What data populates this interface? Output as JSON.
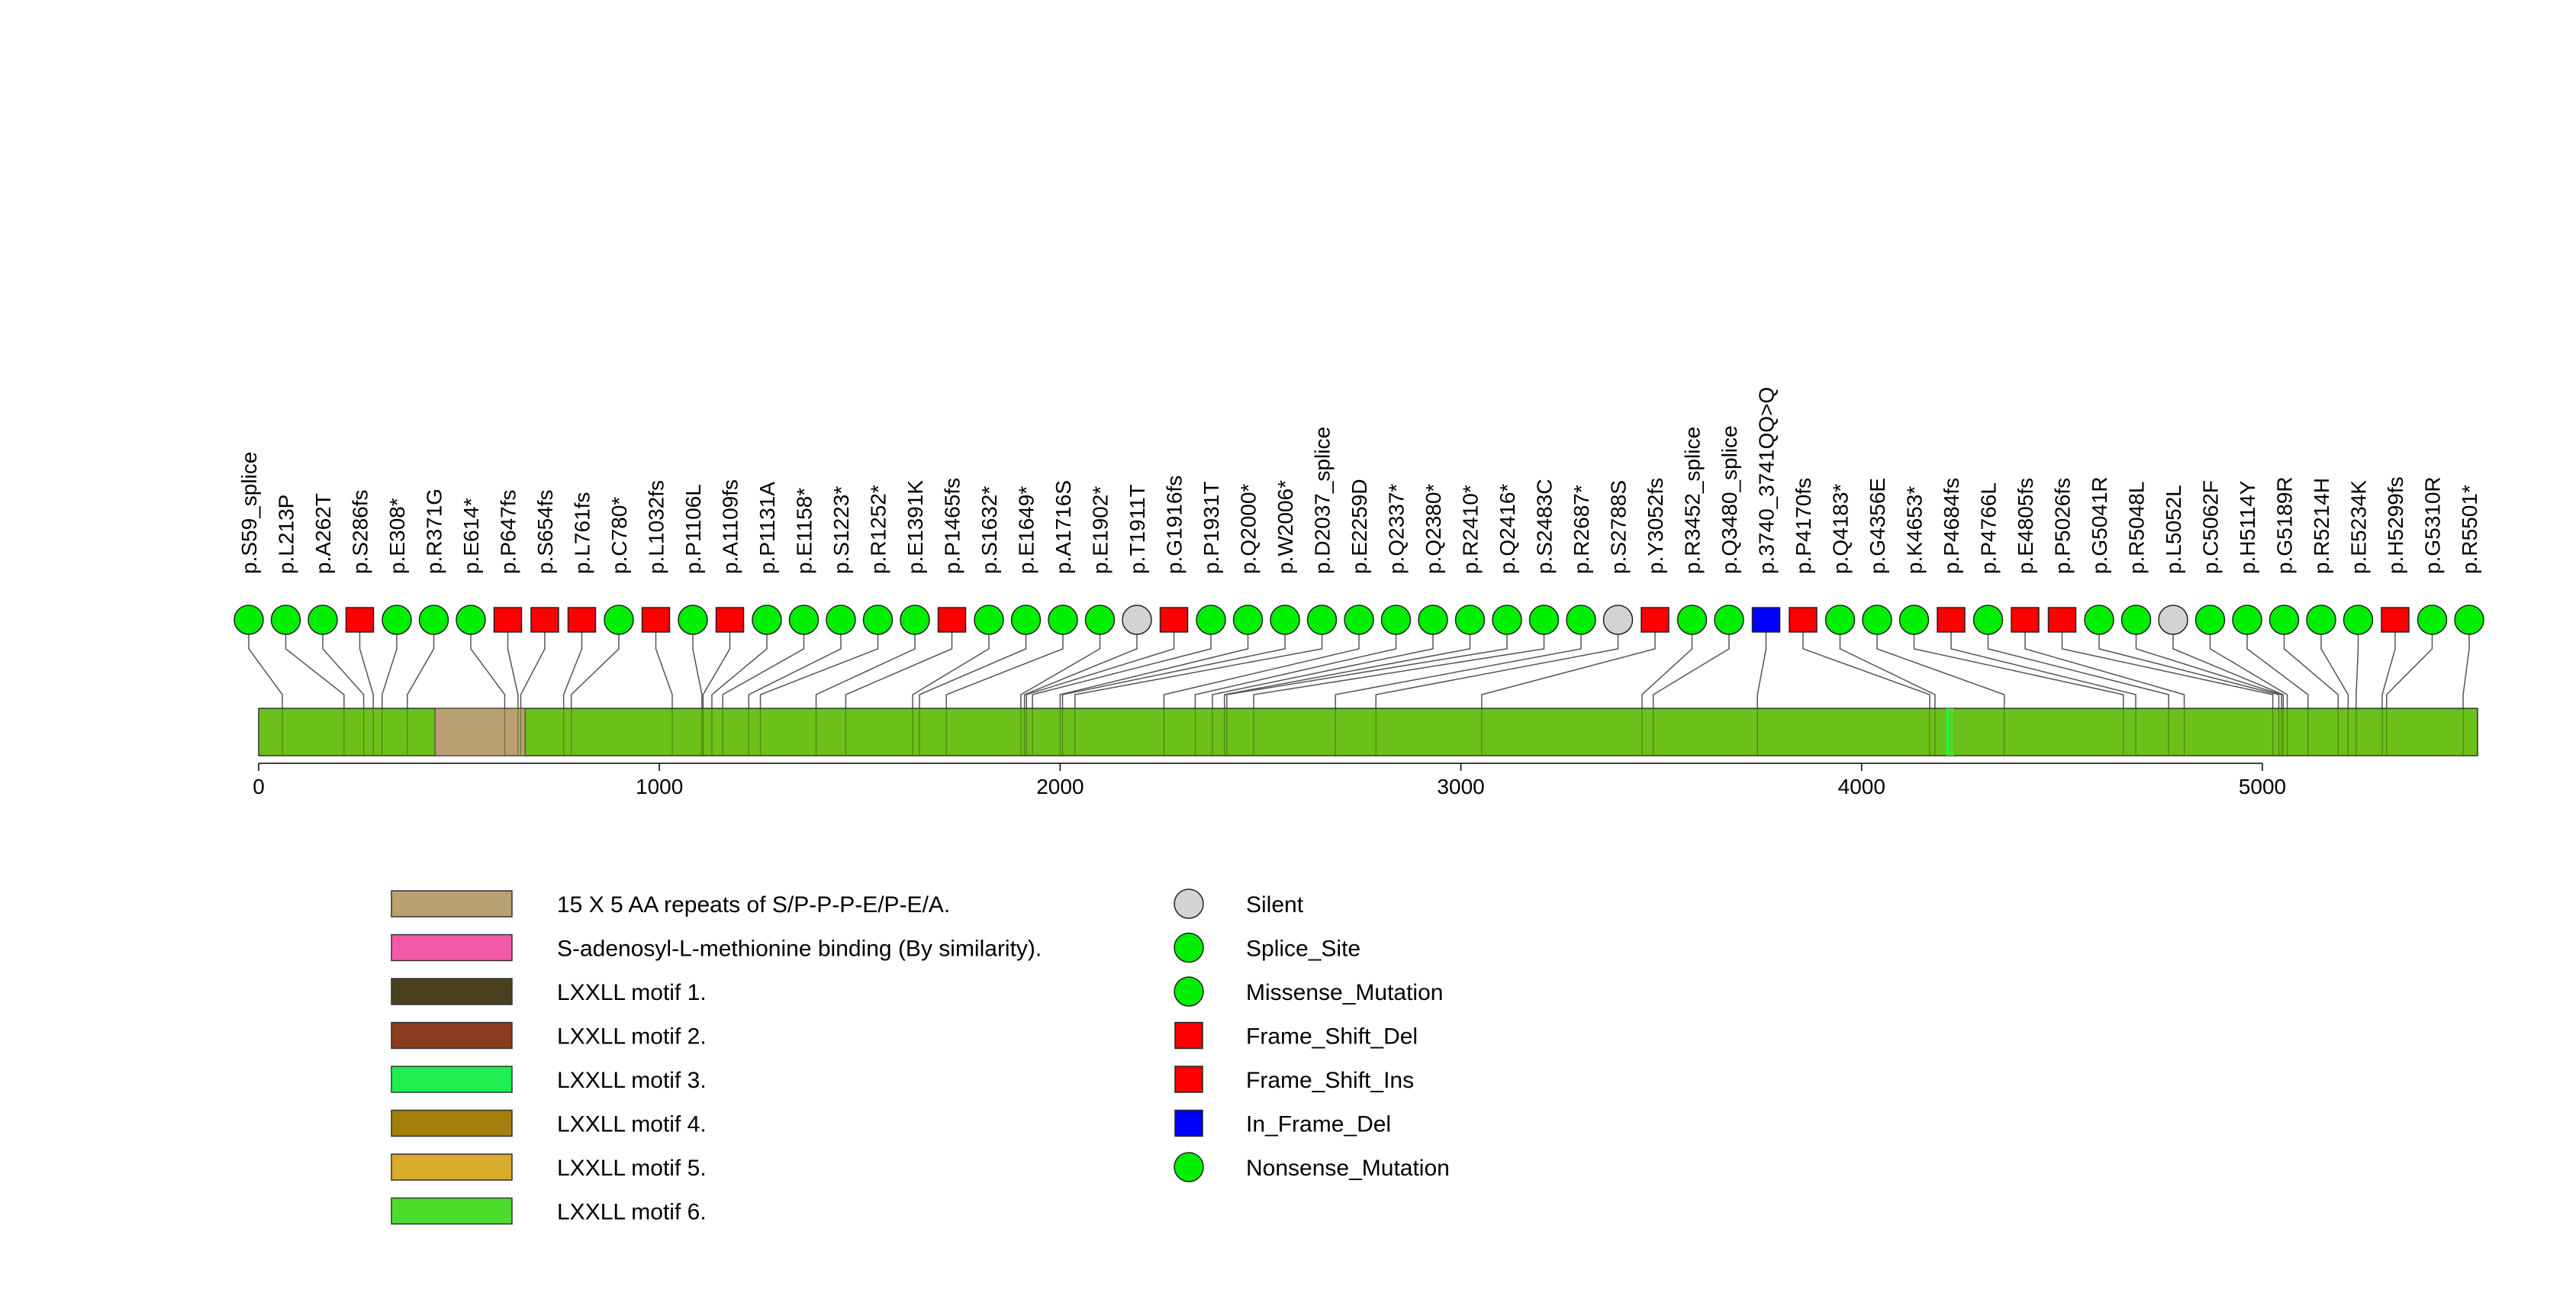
{
  "chart_data": {
    "type": "lollipop",
    "protein_length": 5537,
    "axis": {
      "xlim": [
        0,
        5537
      ],
      "ticks": [
        0,
        1000,
        2000,
        3000,
        4000,
        5000
      ],
      "tick_labels": [
        "0",
        "1000",
        "2000",
        "3000",
        "4000",
        "5000"
      ]
    },
    "domains": [
      {
        "name": "15 X 5 AA repeats of S/P-P-P-E/P-E/A.",
        "start": 440,
        "end": 665,
        "color": "#b8a072"
      }
    ],
    "protein_bar_color": "#6cc01a",
    "motif_marks": [
      {
        "name": "LXXLL motif 3.",
        "pos": 4215,
        "color": "#20ee50"
      },
      {
        "name": "LXXLL motif 6.",
        "pos": 4225,
        "color": "#4cdd2c"
      }
    ],
    "mutations": [
      {
        "label": "p.S59_splice",
        "pos": 59,
        "type": "Splice_Site"
      },
      {
        "label": "p.L213P",
        "pos": 213,
        "type": "Missense_Mutation"
      },
      {
        "label": "p.A262T",
        "pos": 262,
        "type": "Missense_Mutation"
      },
      {
        "label": "p.S286fs",
        "pos": 286,
        "type": "Frame_Shift_Del"
      },
      {
        "label": "p.E308*",
        "pos": 308,
        "type": "Nonsense_Mutation"
      },
      {
        "label": "p.R371G",
        "pos": 371,
        "type": "Missense_Mutation"
      },
      {
        "label": "p.E614*",
        "pos": 614,
        "type": "Nonsense_Mutation"
      },
      {
        "label": "p.P647fs",
        "pos": 647,
        "type": "Frame_Shift_Del"
      },
      {
        "label": "p.S654fs",
        "pos": 654,
        "type": "Frame_Shift_Del"
      },
      {
        "label": "p.L761fs",
        "pos": 761,
        "type": "Frame_Shift_Del"
      },
      {
        "label": "p.C780*",
        "pos": 780,
        "type": "Nonsense_Mutation"
      },
      {
        "label": "p.L1032fs",
        "pos": 1032,
        "type": "Frame_Shift_Del"
      },
      {
        "label": "p.P1106L",
        "pos": 1106,
        "type": "Missense_Mutation"
      },
      {
        "label": "p.A1109fs",
        "pos": 1109,
        "type": "Frame_Shift_Del"
      },
      {
        "label": "p.P1131A",
        "pos": 1131,
        "type": "Missense_Mutation"
      },
      {
        "label": "p.E1158*",
        "pos": 1158,
        "type": "Nonsense_Mutation"
      },
      {
        "label": "p.S1223*",
        "pos": 1223,
        "type": "Nonsense_Mutation"
      },
      {
        "label": "p.R1252*",
        "pos": 1252,
        "type": "Nonsense_Mutation"
      },
      {
        "label": "p.E1391K",
        "pos": 1391,
        "type": "Missense_Mutation"
      },
      {
        "label": "p.P1465fs",
        "pos": 1465,
        "type": "Frame_Shift_Del"
      },
      {
        "label": "p.S1632*",
        "pos": 1632,
        "type": "Nonsense_Mutation"
      },
      {
        "label": "p.E1649*",
        "pos": 1649,
        "type": "Nonsense_Mutation"
      },
      {
        "label": "p.A1716S",
        "pos": 1716,
        "type": "Missense_Mutation"
      },
      {
        "label": "p.E1902*",
        "pos": 1902,
        "type": "Nonsense_Mutation"
      },
      {
        "label": "p.T1911T",
        "pos": 1911,
        "type": "Silent"
      },
      {
        "label": "p.G1916fs",
        "pos": 1916,
        "type": "Frame_Shift_Del"
      },
      {
        "label": "p.P1931T",
        "pos": 1931,
        "type": "Missense_Mutation"
      },
      {
        "label": "p.Q2000*",
        "pos": 2000,
        "type": "Nonsense_Mutation"
      },
      {
        "label": "p.W2006*",
        "pos": 2006,
        "type": "Nonsense_Mutation"
      },
      {
        "label": "p.D2037_splice",
        "pos": 2037,
        "type": "Splice_Site"
      },
      {
        "label": "p.E2259D",
        "pos": 2259,
        "type": "Missense_Mutation"
      },
      {
        "label": "p.Q2337*",
        "pos": 2337,
        "type": "Nonsense_Mutation"
      },
      {
        "label": "p.Q2380*",
        "pos": 2380,
        "type": "Nonsense_Mutation"
      },
      {
        "label": "p.R2410*",
        "pos": 2410,
        "type": "Nonsense_Mutation"
      },
      {
        "label": "p.Q2416*",
        "pos": 2416,
        "type": "Nonsense_Mutation"
      },
      {
        "label": "p.S2483C",
        "pos": 2483,
        "type": "Missense_Mutation"
      },
      {
        "label": "p.R2687*",
        "pos": 2687,
        "type": "Nonsense_Mutation"
      },
      {
        "label": "p.S2788S",
        "pos": 2788,
        "type": "Silent"
      },
      {
        "label": "p.Y3052fs",
        "pos": 3052,
        "type": "Frame_Shift_Del"
      },
      {
        "label": "p.R3452_splice",
        "pos": 3452,
        "type": "Splice_Site"
      },
      {
        "label": "p.Q3480_splice",
        "pos": 3480,
        "type": "Splice_Site"
      },
      {
        "label": "p.3740_3741QQ>Q",
        "pos": 3740,
        "type": "In_Frame_Del"
      },
      {
        "label": "p.P4170fs",
        "pos": 4170,
        "type": "Frame_Shift_Del"
      },
      {
        "label": "p.Q4183*",
        "pos": 4183,
        "type": "Nonsense_Mutation"
      },
      {
        "label": "p.G4356E",
        "pos": 4356,
        "type": "Missense_Mutation"
      },
      {
        "label": "p.K4653*",
        "pos": 4653,
        "type": "Nonsense_Mutation"
      },
      {
        "label": "p.P4684fs",
        "pos": 4684,
        "type": "Frame_Shift_Del"
      },
      {
        "label": "p.P4766L",
        "pos": 4766,
        "type": "Missense_Mutation"
      },
      {
        "label": "p.E4805fs",
        "pos": 4805,
        "type": "Frame_Shift_Del"
      },
      {
        "label": "p.P5026fs",
        "pos": 5026,
        "type": "Frame_Shift_Del"
      },
      {
        "label": "p.G5041R",
        "pos": 5041,
        "type": "Missense_Mutation"
      },
      {
        "label": "p.R5048L",
        "pos": 5048,
        "type": "Missense_Mutation"
      },
      {
        "label": "p.L5052L",
        "pos": 5052,
        "type": "Silent"
      },
      {
        "label": "p.C5062F",
        "pos": 5062,
        "type": "Missense_Mutation"
      },
      {
        "label": "p.H5114Y",
        "pos": 5114,
        "type": "Missense_Mutation"
      },
      {
        "label": "p.G5189R",
        "pos": 5189,
        "type": "Missense_Mutation"
      },
      {
        "label": "p.R5214H",
        "pos": 5214,
        "type": "Missense_Mutation"
      },
      {
        "label": "p.E5234K",
        "pos": 5234,
        "type": "Missense_Mutation"
      },
      {
        "label": "p.H5299fs",
        "pos": 5299,
        "type": "Frame_Shift_Del"
      },
      {
        "label": "p.G5310R",
        "pos": 5310,
        "type": "Missense_Mutation"
      },
      {
        "label": "p.R5501*",
        "pos": 5501,
        "type": "Nonsense_Mutation"
      }
    ],
    "domain_legend": [
      {
        "label": "15 X 5 AA repeats of S/P-P-P-E/P-E/A.",
        "color": "#b8a072"
      },
      {
        "label": "S-adenosyl-L-methionine binding (By similarity).",
        "color": "#f25aa8"
      },
      {
        "label": "LXXLL motif 1.",
        "color": "#4a4020"
      },
      {
        "label": "LXXLL motif 2.",
        "color": "#8b3c1f"
      },
      {
        "label": "LXXLL motif 3.",
        "color": "#20ee50"
      },
      {
        "label": "LXXLL motif 4.",
        "color": "#a3800c"
      },
      {
        "label": "LXXLL motif 5.",
        "color": "#d8ab2a"
      },
      {
        "label": "LXXLL motif 6.",
        "color": "#4cdd2c"
      }
    ],
    "mutation_legend": [
      {
        "label": "Silent",
        "shape": "circle",
        "color": "#d3d3d3"
      },
      {
        "label": "Splice_Site",
        "shape": "circle",
        "color": "#00ee00"
      },
      {
        "label": "Missense_Mutation",
        "shape": "circle",
        "color": "#00ee00"
      },
      {
        "label": "Frame_Shift_Del",
        "shape": "square",
        "color": "#ff0000"
      },
      {
        "label": "Frame_Shift_Ins",
        "shape": "square",
        "color": "#ff0000"
      },
      {
        "label": "In_Frame_Del",
        "shape": "square",
        "color": "#0000ff"
      },
      {
        "label": "Nonsense_Mutation",
        "shape": "circle",
        "color": "#00ee00"
      }
    ],
    "type_styles": {
      "Silent": {
        "shape": "circle",
        "color": "#d3d3d3"
      },
      "Splice_Site": {
        "shape": "circle",
        "color": "#00ee00"
      },
      "Missense_Mutation": {
        "shape": "circle",
        "color": "#00ee00"
      },
      "Frame_Shift_Del": {
        "shape": "square",
        "color": "#ff0000"
      },
      "Frame_Shift_Ins": {
        "shape": "square",
        "color": "#ff0000"
      },
      "In_Frame_Del": {
        "shape": "square",
        "color": "#0000ff"
      },
      "Nonsense_Mutation": {
        "shape": "circle",
        "color": "#00ee00"
      }
    }
  }
}
